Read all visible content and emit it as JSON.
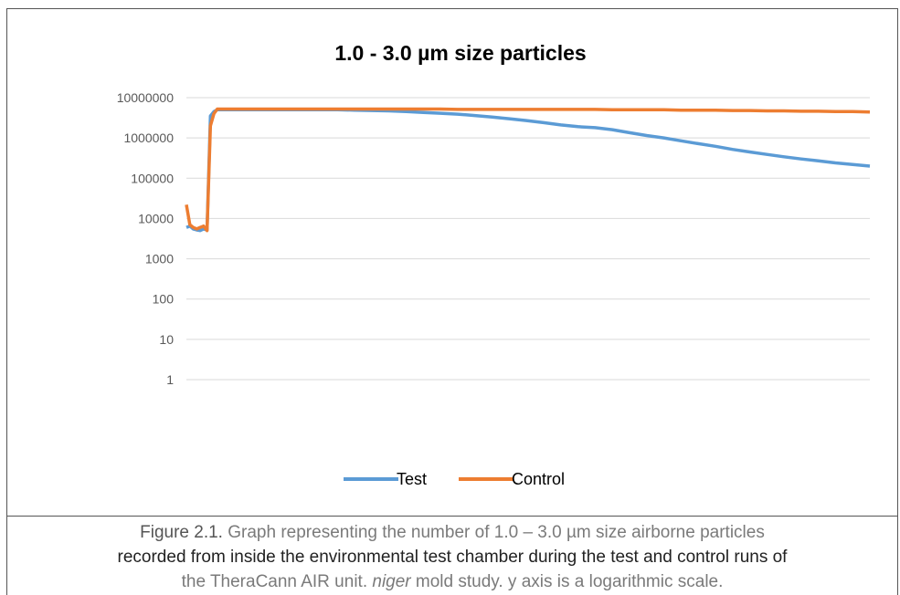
{
  "chart_data": {
    "type": "line",
    "title": "1.0 - 3.0 µm size particles",
    "y_scale": "log",
    "ylim": [
      1,
      10000000
    ],
    "y_ticks": [
      "1",
      "10",
      "100",
      "1000",
      "10000",
      "100000",
      "1000000",
      "10000000"
    ],
    "grid": true,
    "legend_position": "bottom",
    "x": [
      1,
      2,
      3,
      4,
      5,
      6,
      7,
      8,
      9,
      10,
      12,
      15,
      20,
      25,
      30,
      35,
      40,
      45,
      50,
      55,
      60,
      65,
      70,
      75,
      80,
      85,
      90,
      95,
      100,
      105,
      110,
      115,
      120,
      125,
      130,
      135,
      140,
      145,
      150,
      155,
      160,
      165,
      170,
      175,
      180,
      185,
      190,
      195,
      200
    ],
    "series": [
      {
        "name": "Test",
        "color": "#5b9bd5",
        "values": [
          6000,
          6500,
          5500,
          5200,
          5000,
          5500,
          5200,
          3500000,
          4500000,
          5000000,
          5000000,
          5000000,
          5000000,
          5000000,
          5000000,
          5000000,
          5000000,
          5000000,
          4900000,
          4800000,
          4700000,
          4500000,
          4300000,
          4100000,
          3900000,
          3600000,
          3300000,
          3000000,
          2700000,
          2400000,
          2100000,
          1900000,
          1800000,
          1600000,
          1350000,
          1150000,
          1000000,
          850000,
          720000,
          620000,
          520000,
          450000,
          390000,
          340000,
          300000,
          270000,
          240000,
          220000,
          200000
        ]
      },
      {
        "name": "Control",
        "color": "#ed7d31",
        "values": [
          22000,
          7000,
          6000,
          5500,
          6000,
          6500,
          5000,
          2000000,
          4000000,
          5200000,
          5200000,
          5200000,
          5200000,
          5200000,
          5200000,
          5200000,
          5200000,
          5200000,
          5200000,
          5200000,
          5200000,
          5200000,
          5200000,
          5200000,
          5100000,
          5100000,
          5100000,
          5100000,
          5100000,
          5100000,
          5100000,
          5100000,
          5100000,
          5000000,
          5000000,
          5000000,
          5000000,
          4900000,
          4900000,
          4900000,
          4800000,
          4800000,
          4700000,
          4700000,
          4600000,
          4600000,
          4500000,
          4500000,
          4400000
        ]
      }
    ]
  },
  "caption": {
    "label": "Figure 2.1.",
    "line1": " Graph representing the number of 1.0 – 3.0 µm size airborne particles",
    "line2": "recorded from inside the environmental test chamber during the test and control runs of",
    "line3a": "the TheraCann AIR unit. ",
    "line3b": "niger",
    "line3c": " mold study. y axis is a logarithmic scale."
  }
}
